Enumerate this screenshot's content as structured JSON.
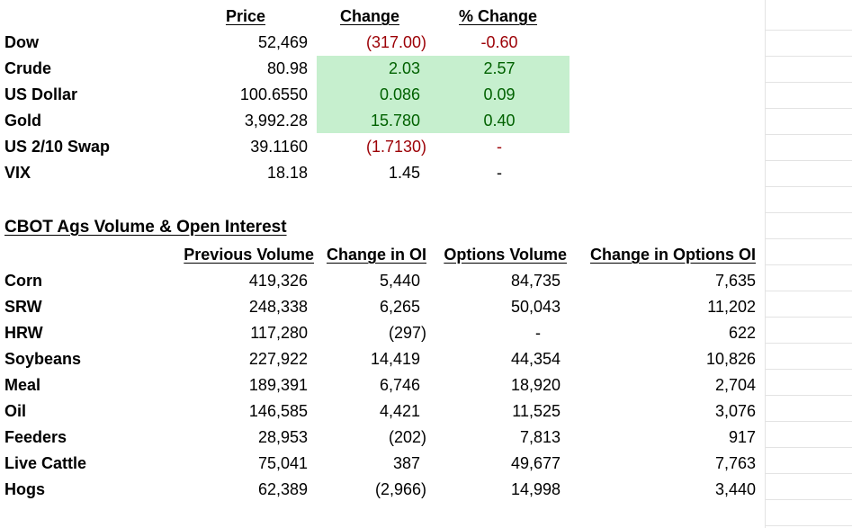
{
  "markets": {
    "headers": {
      "price": "Price",
      "change": "Change",
      "pct_change": "% Change"
    },
    "rows": [
      {
        "name": "Dow",
        "price": "52,469",
        "change": "(317.00)",
        "pct": "-0.60",
        "dir": "neg"
      },
      {
        "name": "Crude",
        "price": "80.98",
        "change": "2.03",
        "pct": "2.57",
        "dir": "pos"
      },
      {
        "name": "US Dollar",
        "price": "100.6550",
        "change": "0.086",
        "pct": "0.09",
        "dir": "pos"
      },
      {
        "name": "Gold",
        "price": "3,992.28",
        "change": "15.780",
        "pct": "0.40",
        "dir": "pos"
      },
      {
        "name": "US 2/10 Swap",
        "price": "39.1160",
        "change": "(1.7130)",
        "pct": "-",
        "dir": "neg"
      },
      {
        "name": "VIX",
        "price": "18.18",
        "change": "1.45",
        "pct": "-",
        "dir": "none"
      }
    ]
  },
  "cbot": {
    "title": "CBOT Ags Volume & Open Interest",
    "headers": {
      "prev_volume": "Previous Volume",
      "change_oi": "Change in OI",
      "options_volume": "Options Volume",
      "change_options_oi": "Change in Options OI"
    },
    "rows": [
      {
        "name": "Corn",
        "prev_volume": "419,326",
        "change_oi": "5,440",
        "options_volume": "84,735",
        "change_options_oi": "7,635"
      },
      {
        "name": "SRW",
        "prev_volume": "248,338",
        "change_oi": "6,265",
        "options_volume": "50,043",
        "change_options_oi": "11,202"
      },
      {
        "name": "HRW",
        "prev_volume": "117,280",
        "change_oi": "(297)",
        "options_volume": "-",
        "change_options_oi": "622"
      },
      {
        "name": "Soybeans",
        "prev_volume": "227,922",
        "change_oi": "14,419",
        "options_volume": "44,354",
        "change_options_oi": "10,826"
      },
      {
        "name": "Meal",
        "prev_volume": "189,391",
        "change_oi": "6,746",
        "options_volume": "18,920",
        "change_options_oi": "2,704"
      },
      {
        "name": "Oil",
        "prev_volume": "146,585",
        "change_oi": "4,421",
        "options_volume": "11,525",
        "change_options_oi": "3,076"
      },
      {
        "name": "Feeders",
        "prev_volume": "28,953",
        "change_oi": "(202)",
        "options_volume": "7,813",
        "change_options_oi": "917"
      },
      {
        "name": "Live Cattle",
        "prev_volume": "75,041",
        "change_oi": "387",
        "options_volume": "49,677",
        "change_options_oi": "7,763"
      },
      {
        "name": "Hogs",
        "prev_volume": "62,389",
        "change_oi": "(2,966)",
        "options_volume": "14,998",
        "change_options_oi": "3,440"
      }
    ]
  },
  "colors": {
    "negative": "#9c0006",
    "positive": "#006100",
    "positive_fill": "#c6efce"
  }
}
